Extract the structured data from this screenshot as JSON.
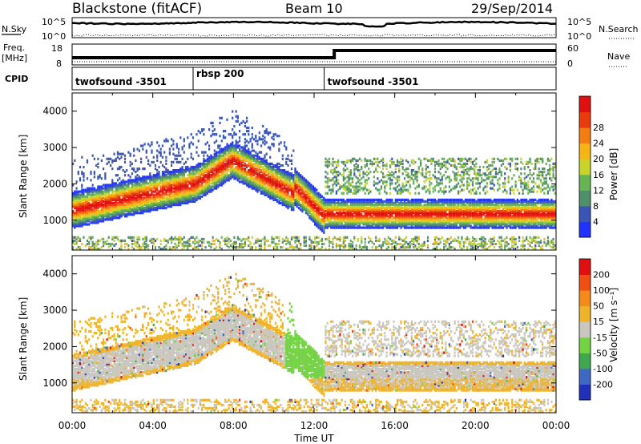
{
  "header": {
    "station": "Blackstone (fitACF)",
    "beam": "Beam 10",
    "date": "29/Sep/2014"
  },
  "noise_panel": {
    "left_label": "N.Sky",
    "left_ticks": [
      "10^5",
      "10^0"
    ],
    "right_ticks": [
      "10^5",
      "10^0"
    ],
    "right_label": "N.Search"
  },
  "freq_panel": {
    "left_label_top": "Freq.",
    "left_label_bottom": "[MHz]",
    "left_ticks": [
      "18",
      "8"
    ],
    "right_ticks": [
      "60",
      "0"
    ],
    "right_label": "Nave"
  },
  "cpid_panel": {
    "label": "CPID",
    "segments": [
      {
        "name": "twofsound -3501",
        "start_hour": 0,
        "end_hour": 6.0
      },
      {
        "name": "rbsp 200",
        "start_hour": 6.0,
        "end_hour": 12.5
      },
      {
        "name": "twofsound -3501",
        "start_hour": 12.5,
        "end_hour": 24
      }
    ]
  },
  "chart_data": [
    {
      "type": "heatmap",
      "title": "",
      "ylabel": "Slant Range [km]",
      "xlabel": "",
      "ylim": [
        180,
        4500
      ],
      "xlim": [
        0,
        24
      ],
      "yticks": [
        "1000",
        "2000",
        "3000",
        "4000"
      ],
      "colorbar": {
        "label": "Power [dB]",
        "ticks": [
          "4",
          "8",
          "12",
          "16",
          "20",
          "24",
          "28"
        ],
        "colors": [
          "#1f34ff",
          "#3a56b4",
          "#4f8f6a",
          "#67b455",
          "#c9d32a",
          "#f7b515",
          "#f47d11",
          "#ea3b0f",
          "#e01010"
        ]
      }
    },
    {
      "type": "heatmap",
      "title": "",
      "ylabel": "Slant Range [km]",
      "xlabel": "Time UT",
      "ylim": [
        180,
        4500
      ],
      "xlim": [
        0,
        24
      ],
      "yticks": [
        "1000",
        "2000",
        "3000",
        "4000"
      ],
      "xticks": [
        "00:00",
        "04:00",
        "08:00",
        "12:00",
        "16:00",
        "20:00",
        "00:00"
      ],
      "colorbar": {
        "label": "Velocity [m s⁻¹]",
        "ticks": [
          "200",
          "100",
          "50",
          "15",
          "-15",
          "-50",
          "-100",
          "-200"
        ],
        "colors": [
          "#2130b8",
          "#3f67c4",
          "#41a650",
          "#73d342",
          "#c8c6bd",
          "#efb32a",
          "#f4891c",
          "#f04e12",
          "#e01010"
        ]
      }
    }
  ]
}
